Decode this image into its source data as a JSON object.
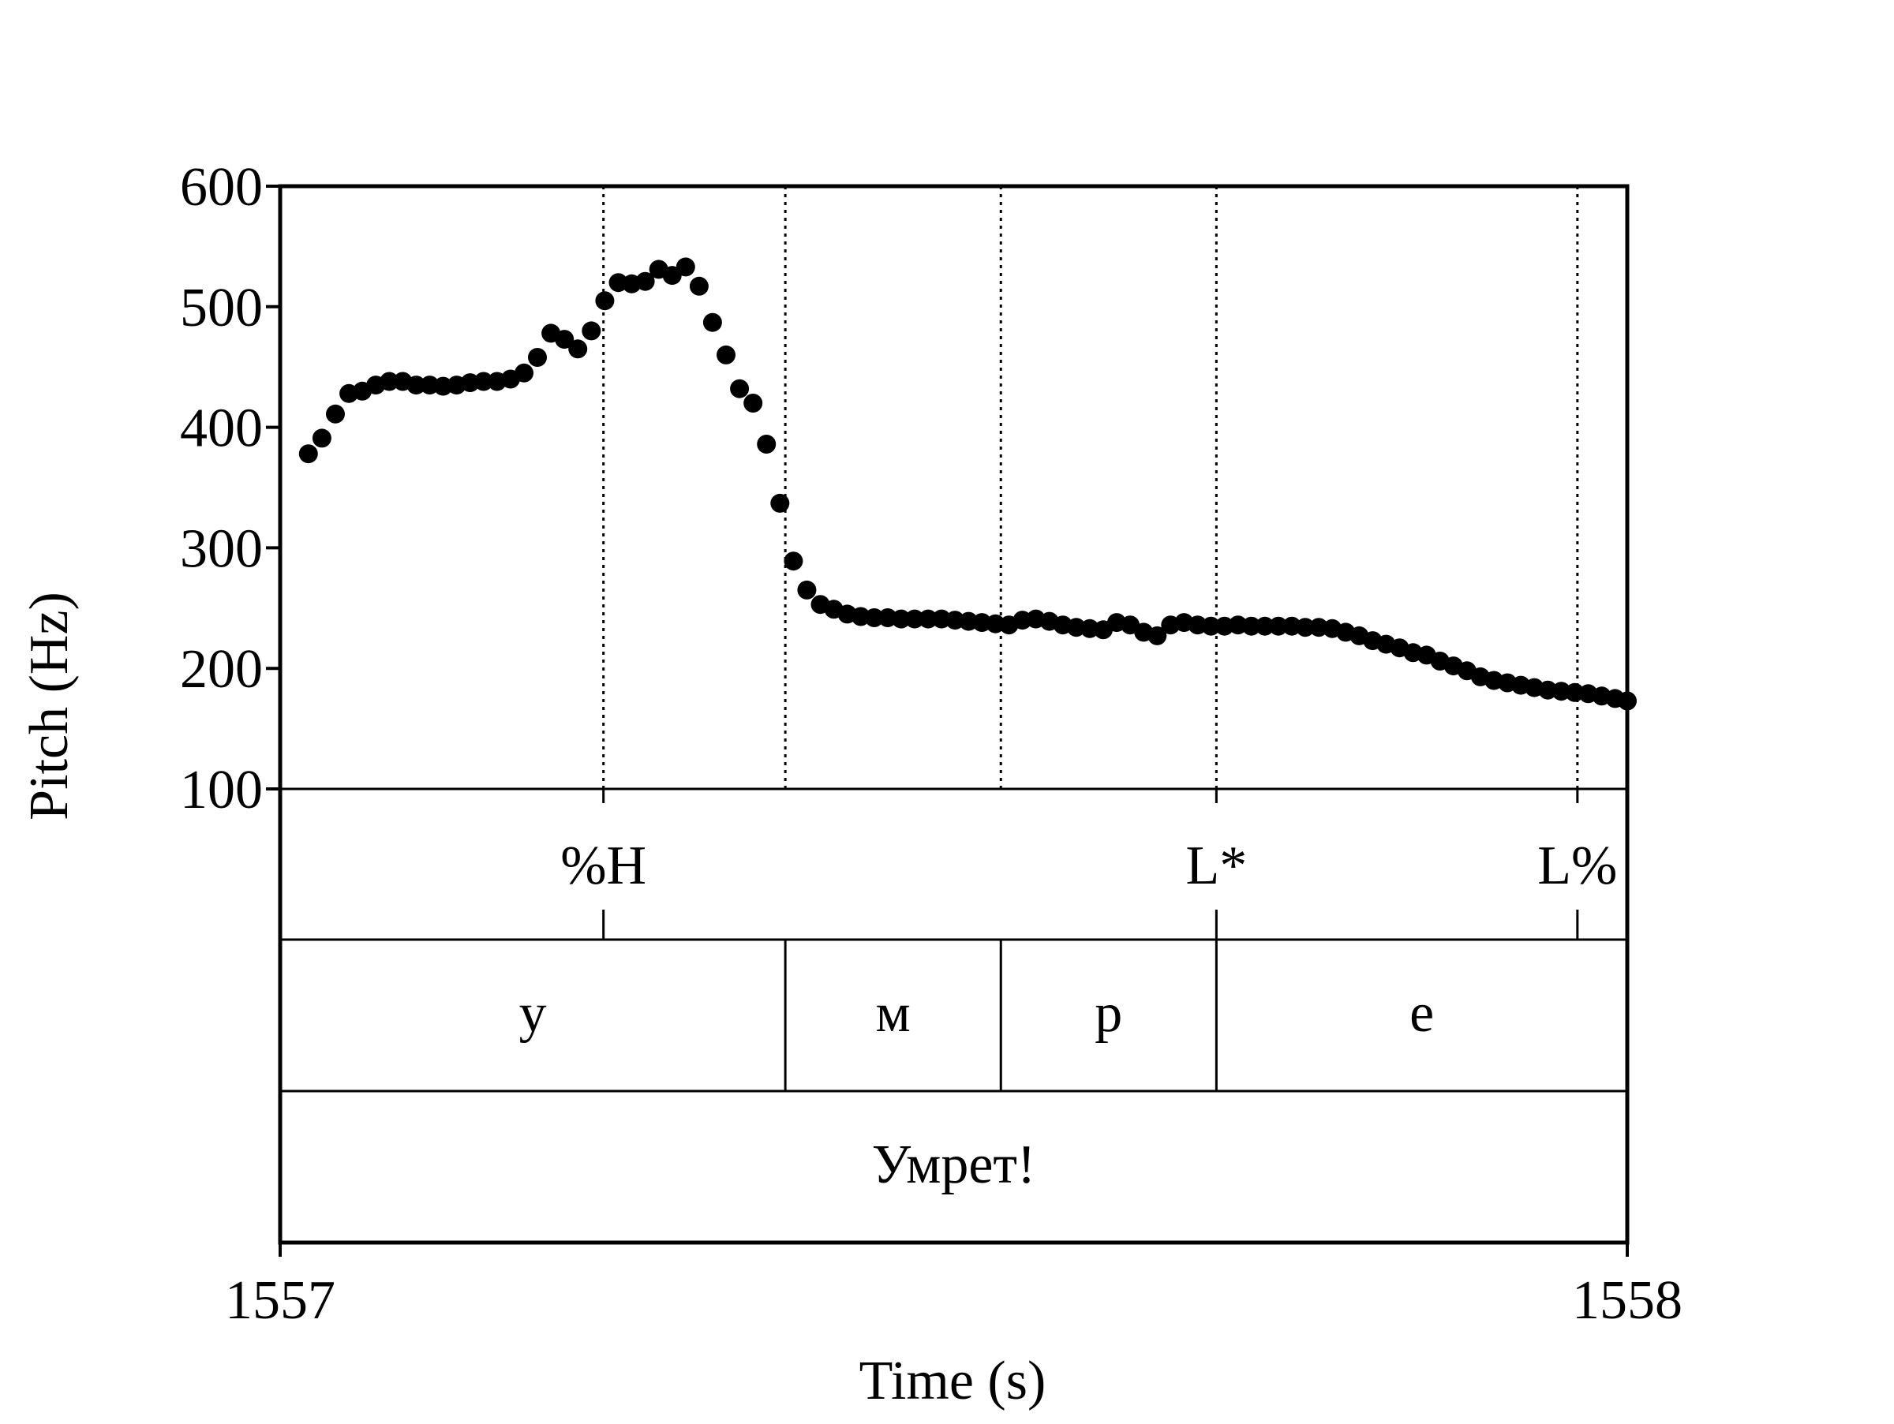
{
  "chart_data": {
    "type": "scatter",
    "title": "",
    "xlabel": "Time (s)",
    "ylabel": "Pitch (Hz)",
    "xlim": [
      1557,
      1558
    ],
    "ylim": [
      100,
      600
    ],
    "x_ticks": [
      "1557",
      "1558"
    ],
    "y_ticks": [
      "100",
      "200",
      "300",
      "400",
      "500",
      "600"
    ],
    "point_color": "#000000",
    "series": [
      {
        "x": [
          1557.021,
          1557.031,
          1557.041,
          1557.051,
          1557.061,
          1557.071,
          1557.081,
          1557.091,
          1557.101,
          1557.111,
          1557.121,
          1557.131,
          1557.141,
          1557.151,
          1557.161,
          1557.171,
          1557.181,
          1557.191,
          1557.201,
          1557.211,
          1557.221,
          1557.231,
          1557.241,
          1557.251,
          1557.261,
          1557.271,
          1557.281,
          1557.291,
          1557.301,
          1557.311,
          1557.321,
          1557.331,
          1557.341,
          1557.351,
          1557.361,
          1557.371,
          1557.381,
          1557.391,
          1557.401,
          1557.411,
          1557.421,
          1557.431,
          1557.441,
          1557.451,
          1557.461,
          1557.471,
          1557.481,
          1557.491,
          1557.501,
          1557.511,
          1557.521,
          1557.531,
          1557.541,
          1557.551,
          1557.561,
          1557.571,
          1557.581,
          1557.591,
          1557.601,
          1557.611,
          1557.621,
          1557.631,
          1557.641,
          1557.651,
          1557.661,
          1557.671,
          1557.681,
          1557.691,
          1557.701,
          1557.711,
          1557.721,
          1557.731,
          1557.741,
          1557.751,
          1557.761,
          1557.771,
          1557.781,
          1557.791,
          1557.801,
          1557.811,
          1557.821,
          1557.831,
          1557.841,
          1557.851,
          1557.861,
          1557.871,
          1557.881,
          1557.891,
          1557.901,
          1557.911,
          1557.921,
          1557.931,
          1557.941,
          1557.951,
          1557.961,
          1557.971,
          1557.981,
          1557.991,
          1558.0
        ],
        "y": [
          378,
          391,
          411,
          428,
          430,
          435,
          438,
          438,
          435,
          435,
          434,
          435,
          437,
          438,
          438,
          440,
          445,
          458,
          478,
          473,
          465,
          480,
          505,
          520,
          519,
          521,
          531,
          526,
          533,
          517,
          487,
          460,
          432,
          420,
          386,
          337,
          289,
          265,
          253,
          249,
          245,
          243,
          242,
          242,
          241,
          241,
          241,
          241,
          240,
          239,
          238,
          237,
          236,
          240,
          241,
          239,
          236,
          234,
          233,
          232,
          238,
          236,
          230,
          227,
          236,
          238,
          236,
          235,
          235,
          236,
          235,
          235,
          235,
          235,
          234,
          234,
          233,
          230,
          227,
          223,
          220,
          217,
          213,
          211,
          206,
          202,
          198,
          193,
          190,
          188,
          186,
          184,
          182,
          181,
          180,
          179,
          177,
          175,
          173
        ]
      }
    ],
    "boundaries": [
      1557.24,
      1557.375,
      1557.535,
      1557.695,
      1557.963
    ],
    "tiers": {
      "tones": [
        {
          "label": "%H",
          "time": 1557.24
        },
        {
          "label": "L*",
          "time": 1557.695
        },
        {
          "label": "L%",
          "time": 1557.963
        }
      ],
      "segments": [
        {
          "label": "у",
          "start": 1557,
          "end": 1557.375
        },
        {
          "label": "м",
          "start": 1557.375,
          "end": 1557.535
        },
        {
          "label": "р",
          "start": 1557.535,
          "end": 1557.695
        },
        {
          "label": "е",
          "start": 1557.695,
          "end": 1558
        }
      ],
      "words": [
        {
          "label": "Умрет!",
          "start": 1557,
          "end": 1558
        }
      ]
    }
  }
}
